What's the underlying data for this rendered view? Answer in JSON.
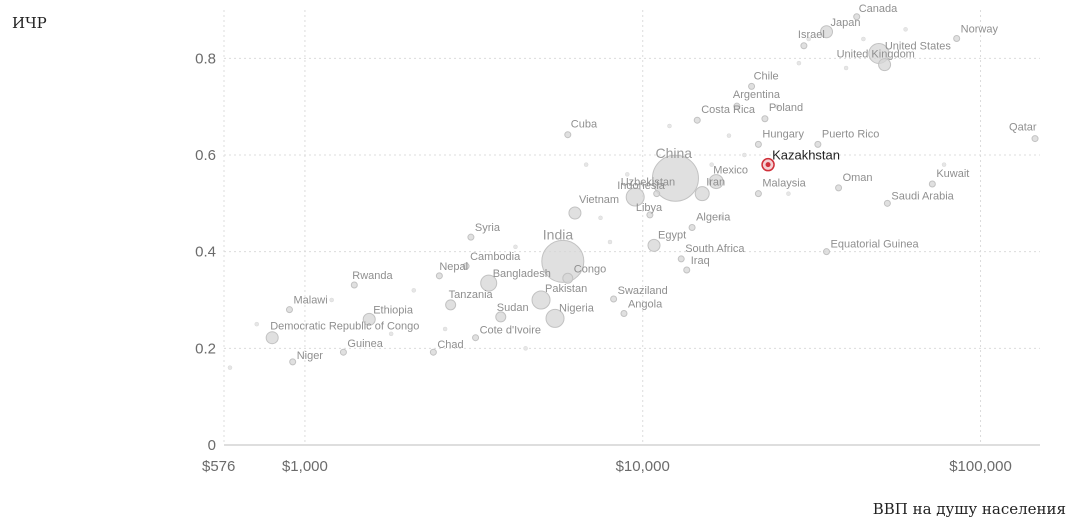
{
  "chart_data": {
    "type": "scatter",
    "title": "",
    "ylabel": "ИЧР",
    "xlabel": "ВВП на душу населения",
    "x_scale": "log",
    "xlim": [
      576,
      150000
    ],
    "ylim": [
      0,
      0.9
    ],
    "x_ticks": [
      {
        "value": 576,
        "label": "$576"
      },
      {
        "value": 1000,
        "label": "$1,000"
      },
      {
        "value": 10000,
        "label": "$10,000"
      },
      {
        "value": 100000,
        "label": "$100,000"
      }
    ],
    "y_ticks": [
      {
        "value": 0,
        "label": "0"
      },
      {
        "value": 0.2,
        "label": "0.2"
      },
      {
        "value": 0.4,
        "label": "0.4"
      },
      {
        "value": 0.6,
        "label": "0.6"
      },
      {
        "value": 0.8,
        "label": "0.8"
      }
    ],
    "grid": true,
    "colors": {
      "point": "#d6d6d6",
      "point_stroke": "#c2c2c2",
      "highlight": "#d0303a"
    },
    "highlight": "Kazakhstan",
    "points": [
      {
        "name": "Canada",
        "x": 43000,
        "y": 0.886
      },
      {
        "name": "Japan",
        "x": 35000,
        "y": 0.855
      },
      {
        "name": "Norway",
        "x": 85000,
        "y": 0.841
      },
      {
        "name": "Israel",
        "x": 30000,
        "y": 0.826
      },
      {
        "name": "United States",
        "x": 50000,
        "y": 0.81
      },
      {
        "name": "United Kingdom",
        "x": 52000,
        "y": 0.787
      },
      {
        "name": "Chile",
        "x": 21000,
        "y": 0.742
      },
      {
        "name": "Argentina",
        "x": 19000,
        "y": 0.701
      },
      {
        "name": "Poland",
        "x": 23000,
        "y": 0.675
      },
      {
        "name": "Costa Rica",
        "x": 14500,
        "y": 0.672
      },
      {
        "name": "Cuba",
        "x": 6000,
        "y": 0.642
      },
      {
        "name": "Hungary",
        "x": 22000,
        "y": 0.622
      },
      {
        "name": "Puerto Rico",
        "x": 33000,
        "y": 0.622
      },
      {
        "name": "Qatar",
        "x": 145000,
        "y": 0.634
      },
      {
        "name": "China",
        "x": 12500,
        "y": 0.552
      },
      {
        "name": "Kazakhstan",
        "x": 23500,
        "y": 0.58
      },
      {
        "name": "Mexico",
        "x": 16500,
        "y": 0.545
      },
      {
        "name": "Uzbekistan",
        "x": 11000,
        "y": 0.52
      },
      {
        "name": "Iran",
        "x": 15000,
        "y": 0.52
      },
      {
        "name": "Kuwait",
        "x": 72000,
        "y": 0.54
      },
      {
        "name": "Oman",
        "x": 38000,
        "y": 0.532
      },
      {
        "name": "Malaysia",
        "x": 22000,
        "y": 0.52
      },
      {
        "name": "Indonesia",
        "x": 9500,
        "y": 0.513
      },
      {
        "name": "Saudi Arabia",
        "x": 53000,
        "y": 0.5
      },
      {
        "name": "Vietnam",
        "x": 6300,
        "y": 0.48
      },
      {
        "name": "Libya",
        "x": 10500,
        "y": 0.476
      },
      {
        "name": "Algeria",
        "x": 14000,
        "y": 0.45
      },
      {
        "name": "Syria",
        "x": 3100,
        "y": 0.43
      },
      {
        "name": "India",
        "x": 5800,
        "y": 0.38
      },
      {
        "name": "Egypt",
        "x": 10800,
        "y": 0.413
      },
      {
        "name": "Equatorial Guinea",
        "x": 35000,
        "y": 0.4
      },
      {
        "name": "Cambodia",
        "x": 3000,
        "y": 0.37
      },
      {
        "name": "South Africa",
        "x": 13000,
        "y": 0.385
      },
      {
        "name": "Iraq",
        "x": 13500,
        "y": 0.362
      },
      {
        "name": "Nepal",
        "x": 2500,
        "y": 0.35
      },
      {
        "name": "Rwanda",
        "x": 1400,
        "y": 0.331
      },
      {
        "name": "Bangladesh",
        "x": 3500,
        "y": 0.335
      },
      {
        "name": "Congo",
        "x": 6000,
        "y": 0.345
      },
      {
        "name": "Tanzania",
        "x": 2700,
        "y": 0.29
      },
      {
        "name": "Pakistan",
        "x": 5000,
        "y": 0.3
      },
      {
        "name": "Swaziland",
        "x": 8200,
        "y": 0.302
      },
      {
        "name": "Malawi",
        "x": 900,
        "y": 0.28
      },
      {
        "name": "Ethiopia",
        "x": 1550,
        "y": 0.26
      },
      {
        "name": "Sudan",
        "x": 3800,
        "y": 0.265
      },
      {
        "name": "Nigeria",
        "x": 5500,
        "y": 0.262
      },
      {
        "name": "Angola",
        "x": 8800,
        "y": 0.272
      },
      {
        "name": "Democratic Republic of Congo",
        "x": 800,
        "y": 0.222
      },
      {
        "name": "Cote d'Ivoire",
        "x": 3200,
        "y": 0.222
      },
      {
        "name": "Niger",
        "x": 920,
        "y": 0.172
      },
      {
        "name": "Guinea",
        "x": 1300,
        "y": 0.192
      },
      {
        "name": "Chad",
        "x": 2400,
        "y": 0.192
      }
    ],
    "background_points": [
      {
        "x": 600,
        "y": 0.16
      },
      {
        "x": 720,
        "y": 0.25
      },
      {
        "x": 1200,
        "y": 0.3
      },
      {
        "x": 1800,
        "y": 0.23
      },
      {
        "x": 2100,
        "y": 0.32
      },
      {
        "x": 2600,
        "y": 0.24
      },
      {
        "x": 4200,
        "y": 0.41
      },
      {
        "x": 4500,
        "y": 0.2
      },
      {
        "x": 6800,
        "y": 0.58
      },
      {
        "x": 7500,
        "y": 0.47
      },
      {
        "x": 8000,
        "y": 0.42
      },
      {
        "x": 9000,
        "y": 0.56
      },
      {
        "x": 12000,
        "y": 0.66
      },
      {
        "x": 17000,
        "y": 0.47
      },
      {
        "x": 18000,
        "y": 0.64
      },
      {
        "x": 25000,
        "y": 0.7
      },
      {
        "x": 27000,
        "y": 0.52
      },
      {
        "x": 29000,
        "y": 0.79
      },
      {
        "x": 31000,
        "y": 0.84
      },
      {
        "x": 40000,
        "y": 0.78
      },
      {
        "x": 45000,
        "y": 0.84
      },
      {
        "x": 60000,
        "y": 0.86
      },
      {
        "x": 78000,
        "y": 0.58
      },
      {
        "x": 20000,
        "y": 0.6
      },
      {
        "x": 16000,
        "y": 0.58
      }
    ]
  }
}
